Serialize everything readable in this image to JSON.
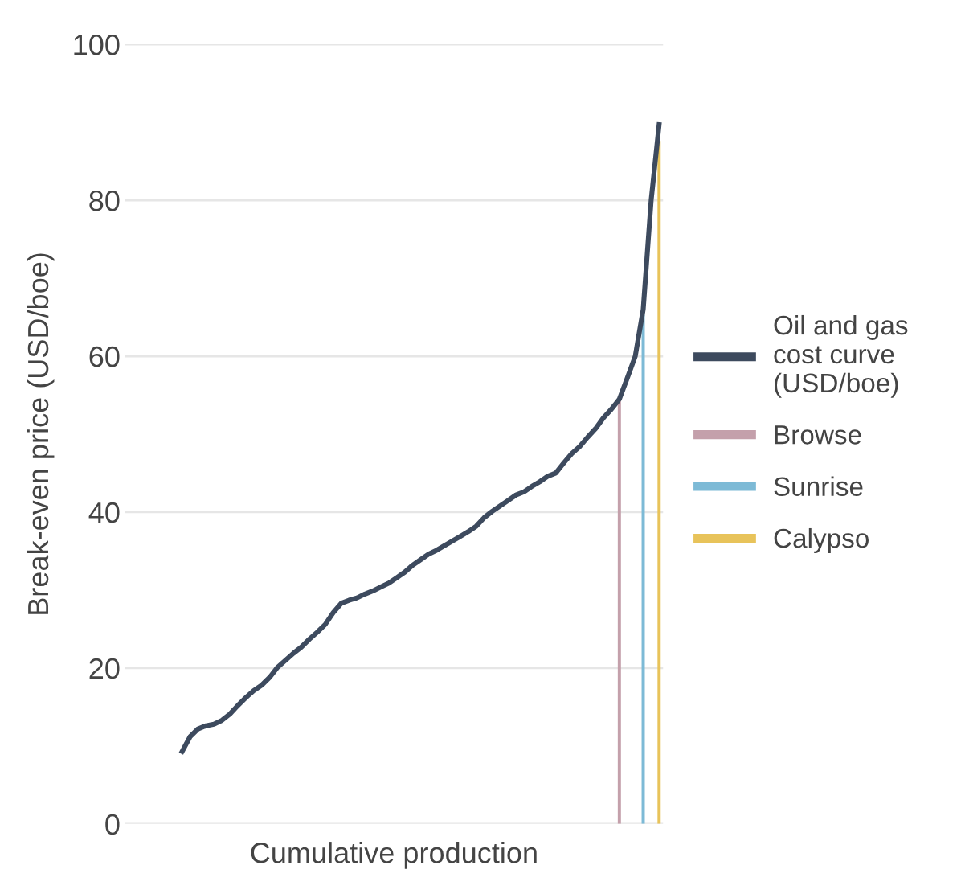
{
  "chart_data": {
    "type": "line",
    "xlabel": "Cumulative production",
    "ylabel": "Break-even price (USD/boe)",
    "categories": [
      null,
      null,
      null,
      null,
      null,
      null,
      null,
      null,
      null,
      null,
      null,
      null,
      null,
      null,
      null,
      null,
      null,
      null,
      null,
      null,
      null,
      null,
      null,
      null,
      null,
      null,
      null,
      null,
      null,
      null,
      null,
      null,
      null,
      null,
      null,
      null,
      null,
      null,
      null,
      null,
      null,
      null,
      null,
      null,
      null,
      null,
      null,
      null,
      null,
      null,
      null,
      null,
      null,
      null,
      null,
      null,
      null,
      null,
      null,
      null,
      null
    ],
    "series": [
      {
        "name": "Oil and gas\ncost curve\n(USD/boe)",
        "color": "#3d4a5e",
        "values": [
          9.3,
          11.2,
          12.2,
          12.6,
          12.8,
          13.3,
          14.1,
          15.2,
          16.2,
          17.1,
          17.8,
          18.8,
          20.1,
          21.0,
          21.9,
          22.7,
          23.7,
          24.6,
          25.6,
          27.1,
          28.3,
          28.7,
          29.0,
          29.5,
          29.9,
          30.4,
          30.9,
          31.6,
          32.3,
          33.2,
          33.9,
          34.6,
          35.1,
          35.7,
          36.3,
          36.9,
          37.5,
          38.2,
          39.3,
          40.1,
          40.8,
          41.5,
          42.2,
          42.6,
          43.3,
          43.9,
          44.6,
          45.0,
          46.3,
          47.5,
          48.4,
          49.6,
          50.7,
          52.1,
          53.2,
          54.5,
          57.2,
          60.0,
          66,
          80,
          89.7
        ]
      },
      {
        "name": "Browse",
        "type": "bar",
        "color": "#c4a0ab",
        "values": [
          null,
          null,
          null,
          null,
          null,
          null,
          null,
          null,
          null,
          null,
          null,
          null,
          null,
          null,
          null,
          null,
          null,
          null,
          null,
          null,
          null,
          null,
          null,
          null,
          null,
          null,
          null,
          null,
          null,
          null,
          null,
          null,
          null,
          null,
          null,
          null,
          null,
          null,
          null,
          null,
          null,
          null,
          null,
          null,
          null,
          null,
          null,
          null,
          null,
          null,
          null,
          null,
          null,
          null,
          null,
          54.6,
          null,
          null,
          null,
          null,
          null
        ]
      },
      {
        "name": "Sunrise",
        "type": "bar",
        "color": "#7dbad6",
        "values": [
          null,
          null,
          null,
          null,
          null,
          null,
          null,
          null,
          null,
          null,
          null,
          null,
          null,
          null,
          null,
          null,
          null,
          null,
          null,
          null,
          null,
          null,
          null,
          null,
          null,
          null,
          null,
          null,
          null,
          null,
          null,
          null,
          null,
          null,
          null,
          null,
          null,
          null,
          null,
          null,
          null,
          null,
          null,
          null,
          null,
          null,
          null,
          null,
          null,
          null,
          null,
          null,
          null,
          null,
          null,
          null,
          null,
          null,
          65.3,
          null,
          null
        ]
      },
      {
        "name": "Calypso",
        "type": "bar",
        "color": "#e8c35a",
        "values": [
          null,
          null,
          null,
          null,
          null,
          null,
          null,
          null,
          null,
          null,
          null,
          null,
          null,
          null,
          null,
          null,
          null,
          null,
          null,
          null,
          null,
          null,
          null,
          null,
          null,
          null,
          null,
          null,
          null,
          null,
          null,
          null,
          null,
          null,
          null,
          null,
          null,
          null,
          null,
          null,
          null,
          null,
          null,
          null,
          null,
          null,
          null,
          null,
          null,
          null,
          null,
          null,
          null,
          null,
          null,
          null,
          null,
          null,
          null,
          null,
          87.6
        ]
      }
    ],
    "ylim": [
      0,
      100
    ],
    "yticks": [
      0,
      20,
      40,
      60,
      80,
      100
    ],
    "grid": "y",
    "legend": "right",
    "tick_labels": "y",
    "marker": "none",
    "line_style": "solid"
  }
}
